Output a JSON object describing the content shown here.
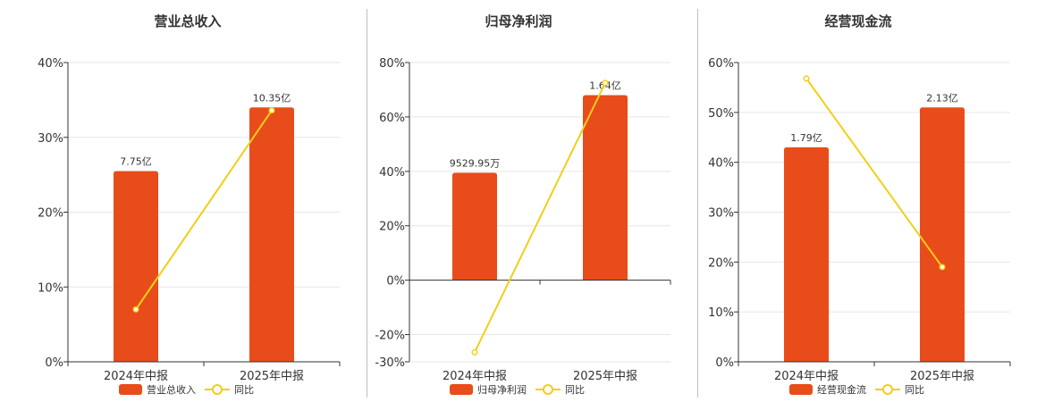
{
  "colors": {
    "bar": "#E84C1A",
    "line": "#F2CE1A",
    "grid": "#E6E6E6",
    "axis": "#333333",
    "divider": "#BFBFBF"
  },
  "chart_data": [
    {
      "type": "bar",
      "title": "营业总收入",
      "categories": [
        "2024年中报",
        "2025年中报"
      ],
      "ylim": [
        0,
        40
      ],
      "yticks": [
        0,
        10,
        20,
        30,
        40
      ],
      "ytick_labels": [
        "0%",
        "10%",
        "20%",
        "30%",
        "40%"
      ],
      "series": [
        {
          "name": "营业总收入",
          "kind": "bar",
          "values": [
            25.5,
            34.0
          ],
          "labels": [
            "7.75亿",
            "10.35亿"
          ]
        },
        {
          "name": "同比",
          "kind": "line",
          "values": [
            7.0,
            33.6
          ]
        }
      ],
      "legend": [
        "营业总收入",
        "同比"
      ]
    },
    {
      "type": "bar",
      "title": "归母净利润",
      "categories": [
        "2024年中报",
        "2025年中报"
      ],
      "ylim": [
        -30,
        80
      ],
      "yticks": [
        -30,
        -20,
        0,
        20,
        40,
        60,
        80
      ],
      "ytick_labels": [
        "-30%",
        "-20%",
        "0%",
        "20%",
        "40%",
        "60%",
        "80%"
      ],
      "series": [
        {
          "name": "归母净利润",
          "kind": "bar",
          "values": [
            39.5,
            68.0
          ],
          "labels": [
            "9529.95万",
            "1.64亿"
          ]
        },
        {
          "name": "同比",
          "kind": "line",
          "values": [
            -26.5,
            72.5
          ]
        }
      ],
      "legend": [
        "归母净利润",
        "同比"
      ]
    },
    {
      "type": "bar",
      "title": "经营现金流",
      "categories": [
        "2024年中报",
        "2025年中报"
      ],
      "ylim": [
        0,
        60
      ],
      "yticks": [
        0,
        10,
        20,
        30,
        40,
        50,
        60
      ],
      "ytick_labels": [
        "0%",
        "10%",
        "20%",
        "30%",
        "40%",
        "50%",
        "60%"
      ],
      "series": [
        {
          "name": "经营现金流",
          "kind": "bar",
          "values": [
            43.0,
            51.0
          ],
          "labels": [
            "1.79亿",
            "2.13亿"
          ]
        },
        {
          "name": "同比",
          "kind": "line",
          "values": [
            56.8,
            19.0
          ]
        }
      ],
      "legend": [
        "经营现金流",
        "同比"
      ]
    }
  ]
}
